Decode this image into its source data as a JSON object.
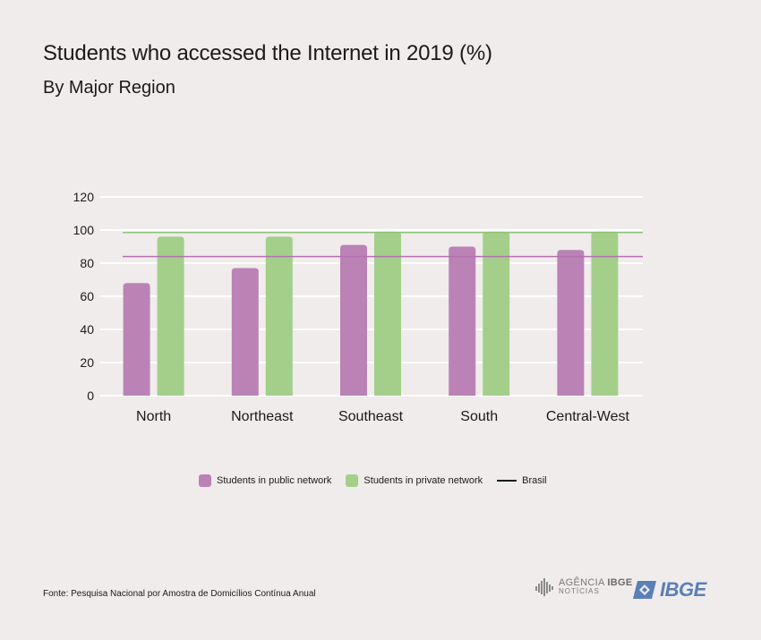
{
  "header": {
    "title": "Students who accessed the Internet in 2019 (%)",
    "subtitle": "By Major Region"
  },
  "chart_data": {
    "type": "bar",
    "title": "Students who accessed the Internet in 2019 (%)",
    "subtitle": "By Major Region",
    "xlabel": "",
    "ylabel": "",
    "categories": [
      "North",
      "Northeast",
      "Southeast",
      "South",
      "Central-West"
    ],
    "series": [
      {
        "name": "Students in public network",
        "values": [
          68,
          77,
          91,
          90,
          88
        ],
        "color": "#bb82b6"
      },
      {
        "name": "Students in private network",
        "values": [
          96,
          96,
          99,
          99,
          99
        ],
        "color": "#a3cf8a"
      }
    ],
    "reference_lines": [
      {
        "name": "Brasil",
        "series": "Students in public network",
        "value": 84,
        "color": "#b472b0"
      },
      {
        "name": "Brasil",
        "series": "Students in private network",
        "value": 98.5,
        "color": "#8fc37a"
      }
    ],
    "ylim": [
      0,
      120
    ],
    "yticks": [
      0,
      20,
      40,
      60,
      80,
      100,
      120
    ],
    "grid": true,
    "legend": {
      "placement": "bottom",
      "items": [
        {
          "label": "Students in public network",
          "type": "swatch",
          "color": "#bb82b6"
        },
        {
          "label": "Students in private network",
          "type": "swatch",
          "color": "#a3cf8a"
        },
        {
          "label": "Brasil",
          "type": "line",
          "color": "#1a1a1a"
        }
      ]
    }
  },
  "footer": {
    "source": "Fonte: Pesquisa Nacional por Amostra de Domicílios Contínua Anual",
    "agencia_label": "AGÊNCIA",
    "agencia_ibge": "IBGE",
    "agencia_noticias": "NOTÍCIAS",
    "ibge_logo": "IBGE"
  }
}
